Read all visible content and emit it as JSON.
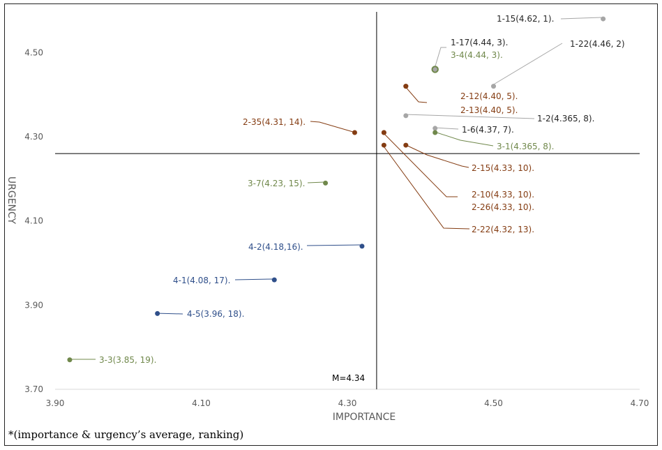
{
  "chart_data": {
    "type": "scatter",
    "title": "",
    "xlabel": "IMPORTANCE",
    "ylabel": "URGENCY",
    "xlim": [
      3.9,
      4.7
    ],
    "ylim": [
      3.7,
      4.6
    ],
    "xticks": [
      "3.90",
      "4.10",
      "4.30",
      "4.50",
      "4.70"
    ],
    "yticks": [
      "3.70",
      "3.90",
      "4.10",
      "4.30",
      "4.50"
    ],
    "mean_line": {
      "x": 4.34,
      "y": 4.26,
      "label": "M=4.34"
    },
    "colors": {
      "grey": "#a6a6a6",
      "green": "#70884b",
      "brown": "#843c12",
      "blue": "#2f4f8a",
      "dark": "#262626"
    },
    "points": [
      {
        "id": "1-15",
        "x": 4.65,
        "y": 4.58,
        "color": "grey",
        "label": "1-15(4.62, 1).",
        "label_color": "dark"
      },
      {
        "id": "1-22",
        "x": 4.5,
        "y": 4.42,
        "color": "grey",
        "label": "1-22(4.46, 2)",
        "label_color": "dark"
      },
      {
        "id": "1-17",
        "x": 4.42,
        "y": 4.46,
        "color": "grey",
        "label": "1-17(4.44, 3).",
        "label_color": "dark"
      },
      {
        "id": "3-4",
        "x": 4.42,
        "y": 4.46,
        "color": "green",
        "label": "3-4(4.44, 3).",
        "label_color": "green"
      },
      {
        "id": "2-12",
        "x": 4.38,
        "y": 4.42,
        "color": "brown",
        "label": "2-12(4.40, 5).",
        "label_color": "brown"
      },
      {
        "id": "2-13",
        "x": 4.38,
        "y": 4.42,
        "color": "brown",
        "label": "2-13(4.40, 5).",
        "label_color": "brown"
      },
      {
        "id": "1-2",
        "x": 4.38,
        "y": 4.35,
        "color": "grey",
        "label": "1-2(4.365, 8).",
        "label_color": "dark"
      },
      {
        "id": "1-6",
        "x": 4.42,
        "y": 4.32,
        "color": "grey",
        "label": "1-6(4.37, 7).",
        "label_color": "dark"
      },
      {
        "id": "3-1",
        "x": 4.42,
        "y": 4.31,
        "color": "green",
        "label": "3-1(4.365, 8).",
        "label_color": "green"
      },
      {
        "id": "2-35",
        "x": 4.31,
        "y": 4.31,
        "color": "brown",
        "label": "2-35(4.31, 14).",
        "label_color": "brown"
      },
      {
        "id": "2-15",
        "x": 4.38,
        "y": 4.28,
        "color": "brown",
        "label": "2-15(4.33, 10).",
        "label_color": "brown"
      },
      {
        "id": "2-10",
        "x": 4.35,
        "y": 4.31,
        "color": "brown",
        "label": "2-10(4.33, 10).",
        "label_color": "brown"
      },
      {
        "id": "2-26",
        "x": 4.35,
        "y": 4.31,
        "color": "brown",
        "label": "2-26(4.33, 10).",
        "label_color": "brown"
      },
      {
        "id": "2-22",
        "x": 4.35,
        "y": 4.28,
        "color": "brown",
        "label": "2-22(4.32, 13).",
        "label_color": "brown"
      },
      {
        "id": "3-7",
        "x": 4.27,
        "y": 4.19,
        "color": "green",
        "label": "3-7(4.23, 15).",
        "label_color": "green"
      },
      {
        "id": "4-2",
        "x": 4.32,
        "y": 4.04,
        "color": "blue",
        "label": "4-2(4.18,16).",
        "label_color": "blue"
      },
      {
        "id": "4-1",
        "x": 4.2,
        "y": 3.96,
        "color": "blue",
        "label": "4-1(4.08, 17).",
        "label_color": "blue"
      },
      {
        "id": "4-5",
        "x": 4.04,
        "y": 3.88,
        "color": "blue",
        "label": "4-5(3.96, 18).",
        "label_color": "blue"
      },
      {
        "id": "3-3",
        "x": 3.92,
        "y": 3.77,
        "color": "green",
        "label": "3-3(3.85, 19).",
        "label_color": "green"
      }
    ]
  },
  "footnote": "*(importance & urgency’s average, ranking)"
}
